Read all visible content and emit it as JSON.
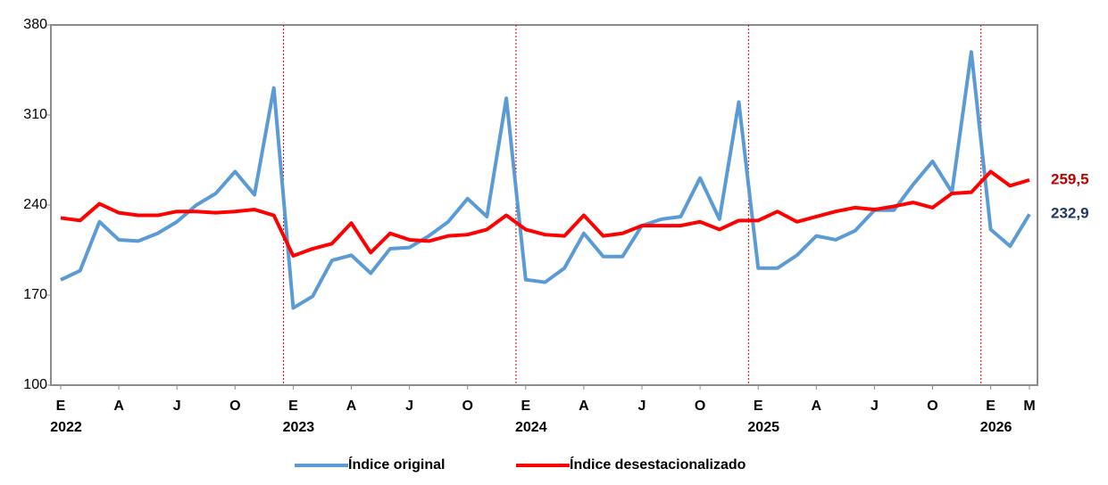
{
  "chart_data": {
    "type": "line",
    "categories": [
      "E",
      null,
      null,
      "A",
      null,
      null,
      "J",
      null,
      null,
      "O",
      null,
      null,
      "E",
      null,
      null,
      "A",
      null,
      null,
      "J",
      null,
      null,
      "O",
      null,
      null,
      "E",
      null,
      null,
      "A",
      null,
      null,
      "J",
      null,
      null,
      "O",
      null,
      null,
      "E",
      null,
      null,
      "A",
      null,
      null,
      "J",
      null,
      null,
      "O",
      null,
      null,
      "E",
      null,
      "M"
    ],
    "category_groups": [
      "2022",
      "2023",
      "2024",
      "2025",
      "2026"
    ],
    "ylim": [
      100,
      380
    ],
    "yticks": [
      100,
      170,
      240,
      310,
      380
    ],
    "legend": "bottom",
    "series": [
      {
        "name": "Índice original",
        "color": "#5b9bd5",
        "label_color": "#1f3864",
        "values": [
          181.8,
          189,
          227,
          213,
          212,
          218,
          227,
          240,
          249,
          266,
          248,
          331,
          160,
          169,
          197,
          201,
          187,
          206,
          207,
          216,
          227,
          245,
          231,
          323,
          182,
          180,
          191,
          218,
          200,
          200,
          224,
          229,
          231,
          261,
          229,
          320,
          191,
          191,
          201,
          216,
          213,
          220,
          236,
          236,
          256,
          274,
          250,
          359,
          221,
          208,
          232.9
        ],
        "value_labels": [
          null,
          null,
          null,
          null,
          null,
          null,
          null,
          null,
          null,
          null,
          null,
          null,
          null,
          null,
          null,
          null,
          null,
          null,
          null,
          null,
          null,
          null,
          null,
          null,
          null,
          null,
          null,
          null,
          null,
          null,
          null,
          null,
          null,
          null,
          null,
          null,
          null,
          null,
          null,
          null,
          null,
          null,
          null,
          null,
          null,
          null,
          null,
          null,
          null,
          null,
          "232,9"
        ]
      },
      {
        "name": "Índice desestacionalizado",
        "color": "#ff0000",
        "label_color": "#c00000",
        "values": [
          230,
          228,
          241,
          234,
          232,
          232,
          235,
          235,
          234,
          235,
          236.5,
          232,
          200.5,
          206,
          210,
          226,
          203,
          218,
          213,
          212,
          216,
          217,
          221,
          232,
          221,
          217,
          216,
          232,
          216,
          218,
          224,
          224,
          224,
          227,
          221,
          228,
          228,
          235,
          227,
          231,
          235,
          238,
          236.5,
          239,
          242,
          238,
          249,
          250,
          266,
          255,
          259.5
        ],
        "value_labels": [
          null,
          null,
          null,
          null,
          null,
          null,
          null,
          null,
          null,
          null,
          null,
          null,
          null,
          null,
          null,
          null,
          null,
          null,
          null,
          null,
          null,
          null,
          null,
          null,
          null,
          null,
          null,
          null,
          null,
          null,
          null,
          null,
          null,
          null,
          null,
          null,
          null,
          null,
          null,
          null,
          null,
          null,
          null,
          null,
          null,
          null,
          null,
          null,
          null,
          null,
          "259,5"
        ]
      }
    ]
  }
}
